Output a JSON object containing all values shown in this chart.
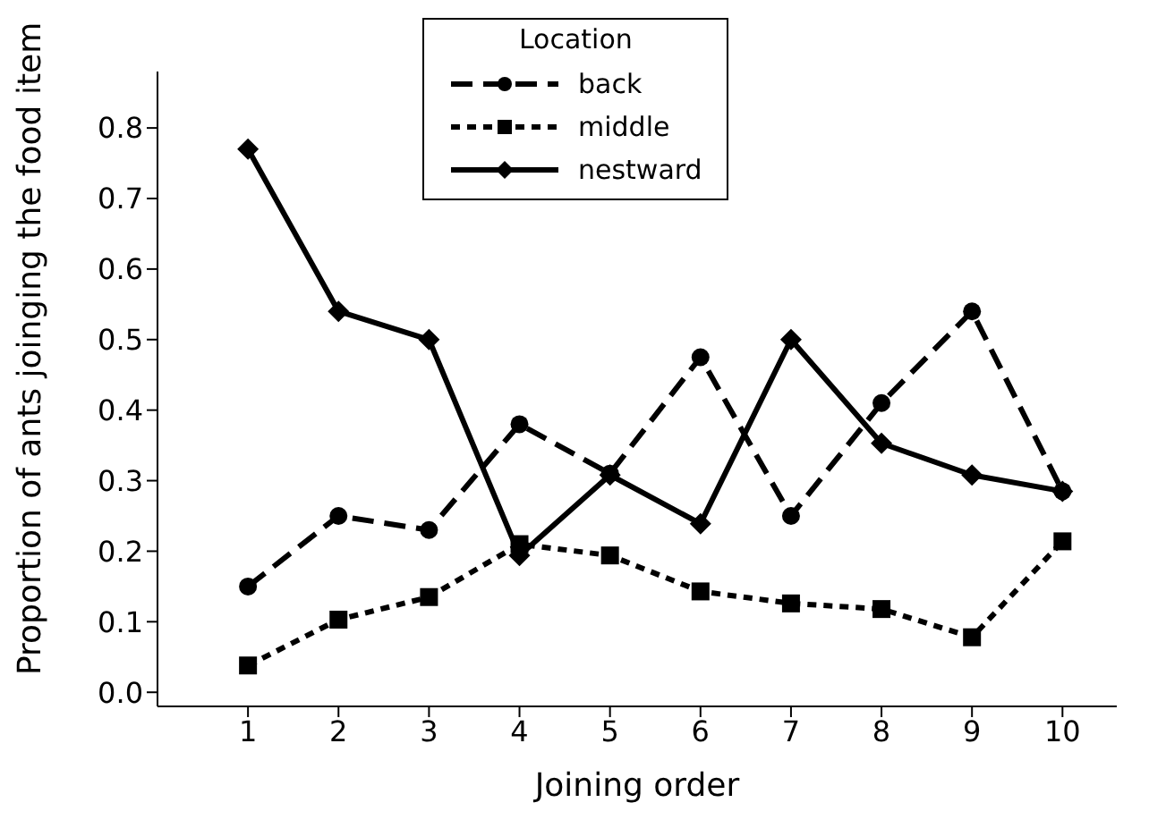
{
  "chart_data": {
    "type": "line",
    "xlabel": "Joining order",
    "ylabel": "Proportion of ants joinging the food item",
    "legend_title": "Location",
    "legend": "top",
    "grid": false,
    "x": [
      1,
      2,
      3,
      4,
      5,
      6,
      7,
      8,
      9,
      10
    ],
    "xlim": [
      0,
      10.6
    ],
    "xticks": [
      1,
      2,
      3,
      4,
      5,
      6,
      7,
      8,
      9,
      10
    ],
    "ylim": [
      -0.02,
      0.88
    ],
    "yticks": [
      {
        "value": 0,
        "label": "0.0"
      },
      0.1,
      0.2,
      0.3,
      0.4,
      0.5,
      0.6,
      0.7,
      0.8
    ],
    "series": [
      {
        "name": "back",
        "color": "#000000",
        "marker": "circle",
        "line_style": "dashed",
        "values": [
          0.15,
          0.25,
          0.23,
          0.38,
          0.31,
          0.475,
          0.25,
          0.41,
          0.54,
          0.285
        ]
      },
      {
        "name": "middle",
        "color": "#000000",
        "marker": "square",
        "line_style": "dotted",
        "values": [
          0.038,
          0.103,
          0.135,
          0.21,
          0.194,
          0.143,
          0.126,
          0.118,
          0.078,
          0.214
        ]
      },
      {
        "name": "nestward",
        "color": "#000000",
        "marker": "diamond",
        "line_style": "solid",
        "values": [
          0.77,
          0.54,
          0.5,
          0.194,
          0.308,
          0.239,
          0.5,
          0.353,
          0.308,
          0.285
        ]
      }
    ]
  }
}
